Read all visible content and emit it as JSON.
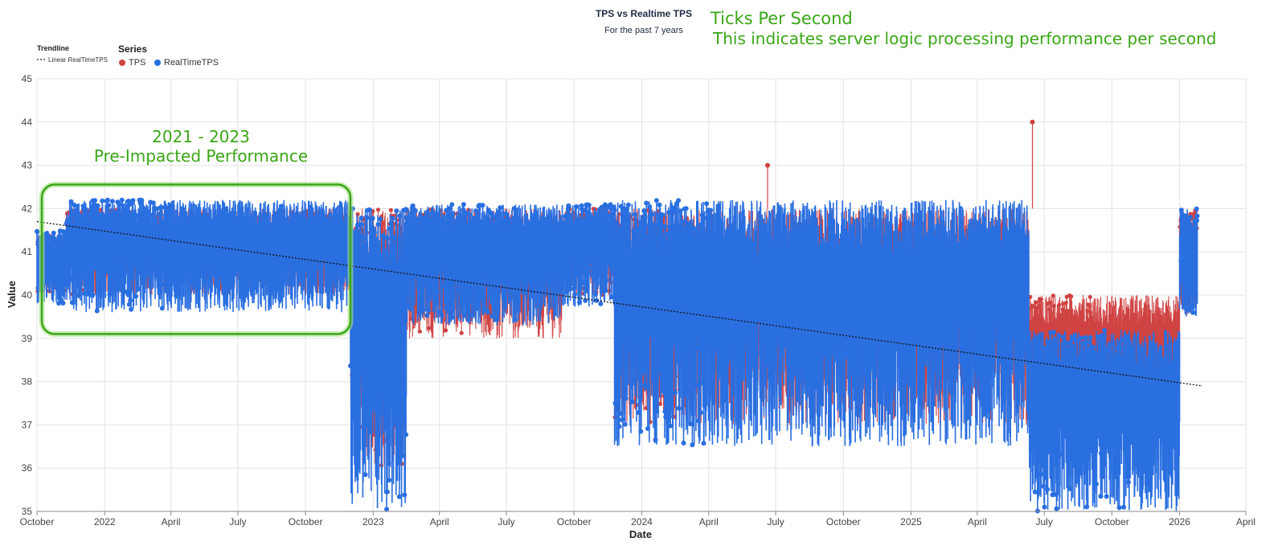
{
  "header": {
    "title": "TPS vs Realtime TPS",
    "subtitle": "For the past 7 years"
  },
  "annotation": {
    "heading": "Ticks Per Second",
    "description": "This indicates server logic processing performance per second",
    "box_line1": "2021 - 2023",
    "box_line2": "Pre-Impacted Performance",
    "color": "#3aa617"
  },
  "legend": {
    "trendline_title": "Trendline",
    "trendline_label": "Linear RealTimeTPS",
    "series_title": "Series",
    "tps_label": "TPS",
    "realtime_label": "RealTimeTPS"
  },
  "chart_data": {
    "type": "line",
    "xlabel": "Date",
    "ylabel": "Value",
    "ylim": [
      35,
      45
    ],
    "x_range": [
      "2021-10-01",
      "2026-04-01"
    ],
    "x_ticks": [
      "October",
      "2022",
      "April",
      "July",
      "October",
      "2023",
      "April",
      "July",
      "October",
      "2024",
      "April",
      "July",
      "October",
      "2025",
      "April",
      "July",
      "October",
      "2026",
      "April"
    ],
    "y_ticks": [
      "35",
      "36",
      "37",
      "38",
      "39",
      "40",
      "41",
      "42",
      "43",
      "44",
      "45"
    ],
    "grid": true,
    "legend_position": "top-left",
    "series": [
      {
        "name": "TPS",
        "color": "#d04343"
      },
      {
        "name": "RealTimeTPS",
        "color": "#2a6fe0"
      }
    ],
    "trendline": {
      "name": "Linear RealTimeTPS",
      "start": [
        "2021-10-01",
        41.7
      ],
      "end": [
        "2026-02-01",
        37.9
      ]
    },
    "highlight_region": {
      "start": "2021-10-01",
      "end": "2022-12-01",
      "ymin": 39.1,
      "ymax": 42.5
    },
    "segments": [
      {
        "start": "2021-10-01",
        "end": "2021-11-10",
        "tps_range": [
          40,
          41.4
        ],
        "rt_range": [
          39.8,
          41.5
        ]
      },
      {
        "start": "2021-11-10",
        "end": "2022-12-01",
        "tps_range": [
          40,
          42
        ],
        "rt_range": [
          39.6,
          42.2
        ]
      },
      {
        "start": "2022-12-01",
        "end": "2023-02-15",
        "tps_range": [
          36,
          42
        ],
        "rt_range": [
          35,
          42
        ]
      },
      {
        "start": "2023-02-15",
        "end": "2023-09-15",
        "tps_range": [
          39,
          42
        ],
        "rt_range": [
          39.3,
          42.1
        ]
      },
      {
        "start": "2023-09-15",
        "end": "2023-11-25",
        "tps_range": [
          40,
          42
        ],
        "rt_range": [
          39.7,
          42.1
        ]
      },
      {
        "start": "2023-11-25",
        "end": "2025-06-10",
        "tps_range": [
          37,
          42
        ],
        "rt_range": [
          36.5,
          42.2
        ]
      },
      {
        "start": "2025-06-10",
        "end": "2026-01-01",
        "tps_range": [
          37,
          40
        ],
        "rt_range": [
          35,
          39.2
        ]
      },
      {
        "start": "2026-01-01",
        "end": "2026-01-25",
        "tps_range": [
          39.5,
          42
        ],
        "rt_range": [
          39.5,
          42
        ]
      }
    ],
    "notable_points": [
      {
        "series": "TPS",
        "x": "2025-06-15",
        "y": 44
      },
      {
        "series": "TPS",
        "x": "2024-06-20",
        "y": 43
      }
    ]
  }
}
